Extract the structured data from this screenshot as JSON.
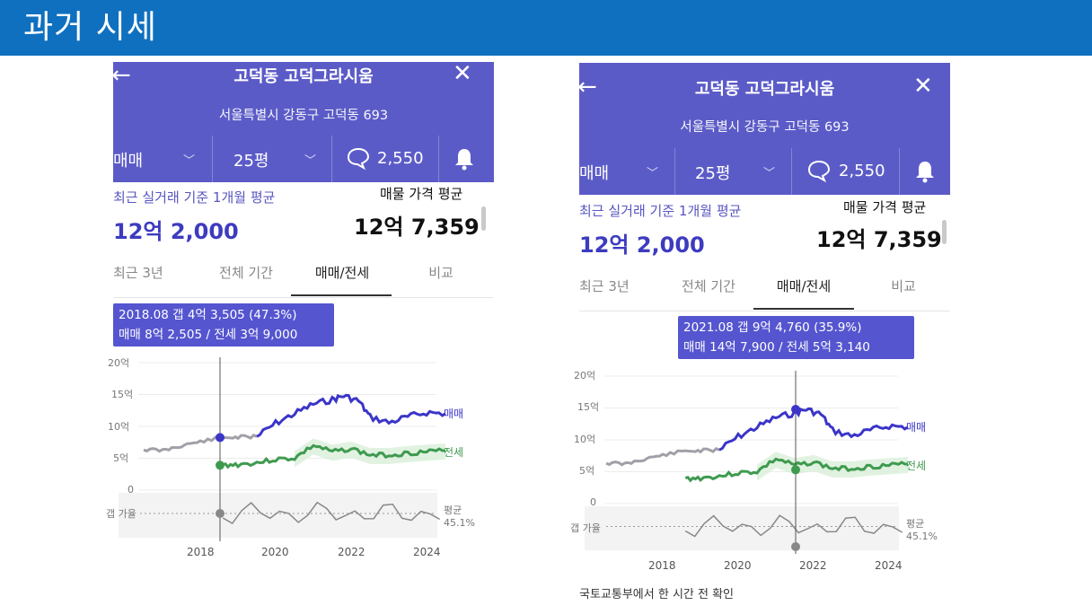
{
  "slide": {
    "title": "과거 시세"
  },
  "panels": [
    {
      "back_icon": "←",
      "close_icon": "✕",
      "apartment_name": "고덕동 고덕그라시움",
      "address": "서울특별시 강동구 고덕동 693",
      "trade_type": "매매",
      "size": "25평",
      "comment_count": "2,550",
      "recent_label": "최근 실거래 기준 1개월 평균",
      "recent_price": "12억 2,000",
      "listing_label": "매물 가격 평균",
      "listing_price": "12억 7,359",
      "tabs": [
        "최근 3년",
        "전체 기간",
        "매매/전세",
        "비교"
      ],
      "active_tab": "매매/전세",
      "tooltip": {
        "line1": "2018.08  갭 4억 3,505 (47.3%)",
        "line2": "매매 8억 2,505 / 전세 3억 9,000"
      },
      "y_labels": [
        "20억",
        "15억",
        "10억",
        "5억",
        "0"
      ],
      "gap_ratio_label": "갭 가율",
      "avg_label": "평균",
      "avg_value": "45.1%",
      "x_labels": [
        "2018",
        "2020",
        "2022",
        "2024"
      ],
      "legend": [
        "매매",
        "전세"
      ]
    },
    {
      "back_icon": "←",
      "close_icon": "✕",
      "apartment_name": "고덕동 고덕그라시움",
      "address": "서울특별시 강동구 고덕동 693",
      "trade_type": "매매",
      "size": "25평",
      "comment_count": "2,550",
      "recent_label": "최근 실거래 기준 1개월 평균",
      "recent_price": "12억 2,000",
      "listing_label": "매물 가격 평균",
      "listing_price": "12억 7,359",
      "tabs": [
        "최근 3년",
        "전체 기간",
        "매매/전세",
        "비교"
      ],
      "active_tab": "매매/전세",
      "tooltip": {
        "line1": "2021.08  갭 9억 4,760 (35.9%)",
        "line2": "매매 14억 7,900 / 전세 5억 3,140"
      },
      "y_labels": [
        "20억",
        "15억",
        "10억",
        "5억",
        "0"
      ],
      "gap_ratio_label": "갭 가율",
      "avg_label": "평균",
      "avg_value": "45.1%",
      "x_labels": [
        "2018",
        "2020",
        "2022",
        "2024"
      ],
      "legend": [
        "매매",
        "전세"
      ],
      "source_note": "국토교통부에서 한 시간 전 확인"
    }
  ],
  "colors": {
    "header_blue": "#0f70bf",
    "app_purple": "#5b5bc8",
    "sale_line": "#3b35c8",
    "jeonse_line": "#3f9a4f",
    "tooltip": "#5555d0"
  },
  "chart_data": [
    {
      "type": "line",
      "title": "",
      "xlabel": "",
      "ylabel": "",
      "x_ticks": [
        "2018",
        "2020",
        "2022",
        "2024"
      ],
      "ylim": [
        0,
        20
      ],
      "y_unit": "억",
      "selected": {
        "date": "2018.08",
        "sale": 8.25,
        "jeonse": 3.9,
        "gap": 4.35
      },
      "series": [
        {
          "name": "매매",
          "x": [
            2016.5,
            2017.0,
            2017.5,
            2018.0,
            2018.6,
            2019.0,
            2019.5,
            2020.0,
            2020.5,
            2021.0,
            2021.5,
            2021.8,
            2022.2,
            2022.5,
            2023.0,
            2023.5,
            2024.0,
            2024.5
          ],
          "values": [
            6.4,
            6.2,
            7.0,
            7.6,
            8.25,
            8.3,
            8.4,
            10.5,
            12.0,
            13.5,
            14.2,
            14.8,
            14.0,
            11.5,
            10.6,
            11.5,
            12.2,
            12.0
          ]
        },
        {
          "name": "전세",
          "x": [
            2018.6,
            2019.0,
            2019.5,
            2020.0,
            2020.5,
            2021.0,
            2021.5,
            2022.0,
            2022.5,
            2023.0,
            2023.5,
            2024.0,
            2024.5
          ],
          "values": [
            3.9,
            4.0,
            4.3,
            4.8,
            5.0,
            7.0,
            6.0,
            6.5,
            5.5,
            5.5,
            5.8,
            6.0,
            6.2
          ]
        },
        {
          "name": "갭 가율",
          "avg": "45.1%"
        }
      ]
    },
    {
      "type": "line",
      "title": "",
      "xlabel": "",
      "ylabel": "",
      "x_ticks": [
        "2018",
        "2020",
        "2022",
        "2024"
      ],
      "ylim": [
        0,
        20
      ],
      "y_unit": "억",
      "selected": {
        "date": "2021.08",
        "sale": 14.79,
        "jeonse": 5.31,
        "gap": 9.48
      },
      "series": [
        {
          "name": "매매",
          "x": [
            2016.5,
            2017.0,
            2017.5,
            2018.0,
            2018.6,
            2019.0,
            2019.5,
            2020.0,
            2020.5,
            2021.0,
            2021.5,
            2021.8,
            2022.2,
            2022.5,
            2023.0,
            2023.5,
            2024.0,
            2024.5
          ],
          "values": [
            6.4,
            6.2,
            7.0,
            7.6,
            8.25,
            8.3,
            8.4,
            10.5,
            12.0,
            13.5,
            14.2,
            14.8,
            14.0,
            11.5,
            10.6,
            11.5,
            12.2,
            12.0
          ]
        },
        {
          "name": "전세",
          "x": [
            2018.6,
            2019.0,
            2019.5,
            2020.0,
            2020.5,
            2021.0,
            2021.5,
            2022.0,
            2022.5,
            2023.0,
            2023.5,
            2024.0,
            2024.5
          ],
          "values": [
            3.9,
            4.0,
            4.3,
            4.8,
            5.0,
            7.0,
            6.0,
            6.5,
            5.5,
            5.5,
            5.8,
            6.0,
            6.2
          ]
        },
        {
          "name": "갭 가율",
          "avg": "45.1%"
        }
      ]
    }
  ]
}
